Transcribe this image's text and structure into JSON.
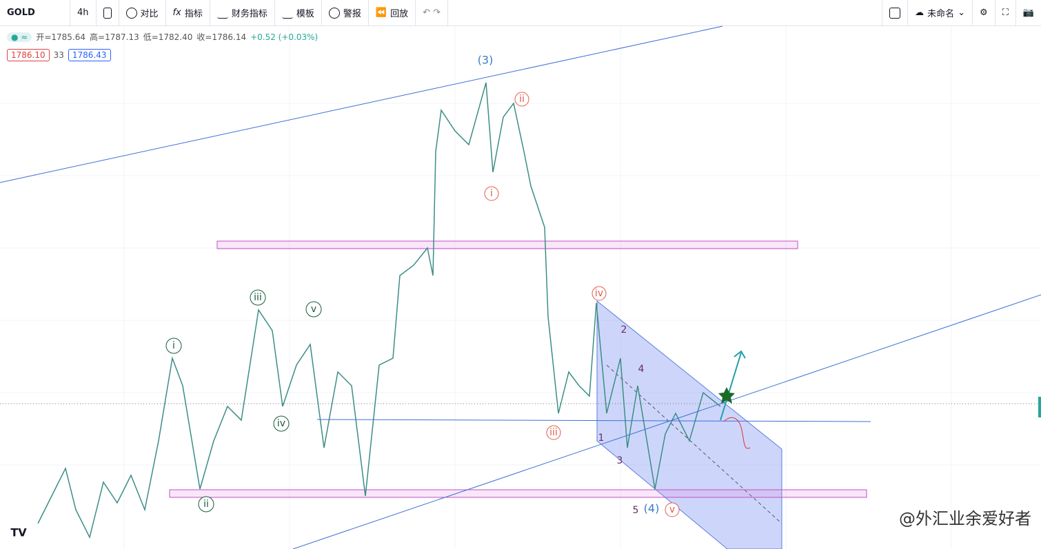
{
  "toolbar": {
    "symbol": "GOLD",
    "interval": "4h",
    "items": [
      "对比",
      "指标",
      "财务指标",
      "模板",
      "警报",
      "回放"
    ],
    "layout_name": "未命名"
  },
  "legend": {
    "fields": [
      "开=1785.64",
      "高=1787.13",
      "低=1782.40",
      "收=1786.14",
      "+0.52 (+0.03%)"
    ],
    "bid": "1786.10",
    "spread": "33",
    "ask": "1786.43"
  },
  "wave_labels": [
    "(3)",
    "ii",
    "i",
    "iii",
    "v",
    "iv",
    "ii",
    "iii",
    "iv",
    "i",
    "2",
    "4",
    "1",
    "3",
    "5",
    "(4)",
    "v"
  ],
  "watermark": "@外汇业余爱好者"
}
